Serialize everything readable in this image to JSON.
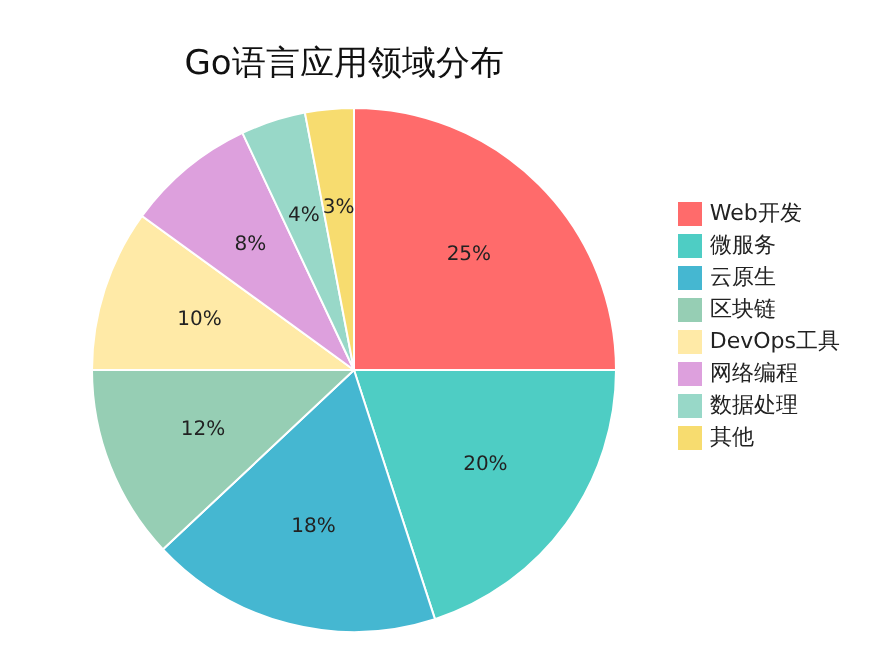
{
  "chart_data": {
    "type": "pie",
    "title": "Go语言应用领域分布",
    "categories": [
      "Web开发",
      "微服务",
      "云原生",
      "区块链",
      "DevOps工具",
      "网络编程",
      "数据处理",
      "其他"
    ],
    "values": [
      25,
      20,
      18,
      12,
      10,
      8,
      4,
      3
    ],
    "colors": [
      "#ff6b6b",
      "#4ecdc4",
      "#45b7d1",
      "#96ceb4",
      "#ffeaa7",
      "#dda0dd",
      "#98d8c8",
      "#f7dc6f"
    ],
    "value_labels": [
      "25%",
      "20%",
      "18%",
      "12%",
      "10%",
      "8%",
      "4%",
      "3%"
    ],
    "legend": "right"
  }
}
